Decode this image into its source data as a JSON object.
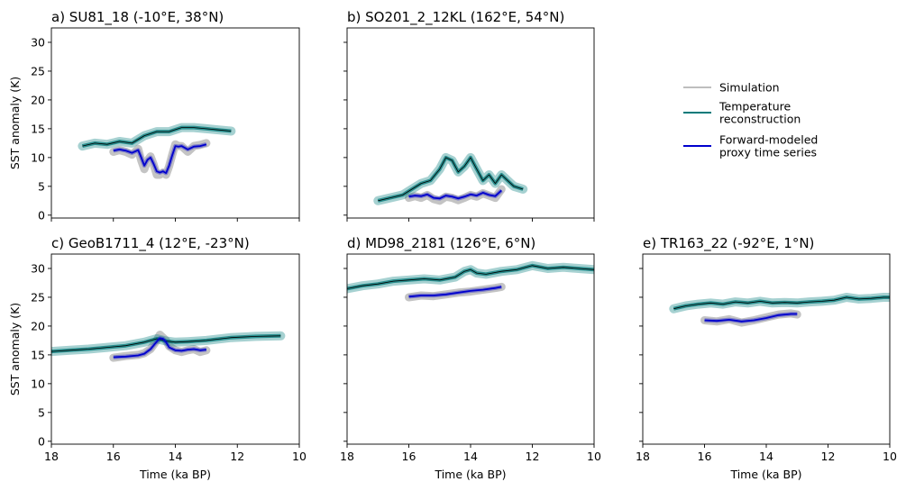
{
  "chart_data": [
    {
      "type": "line",
      "panel": "a",
      "title": "a) SU81_18 (-10°E, 38°N)",
      "xlabel": "",
      "ylabel": "SST anomaly (K)",
      "xlim": [
        18,
        10
      ],
      "ylim": [
        -0.5,
        32.5
      ],
      "xticks": [
        18,
        16,
        14,
        12,
        10
      ],
      "yticks": [
        0,
        5,
        10,
        15,
        20,
        25,
        30
      ],
      "show_xticklabels": false,
      "show_yticklabels": true,
      "series": [
        {
          "role": "simulation",
          "x": [
            16.0,
            15.8,
            15.6,
            15.4,
            15.2,
            15.1,
            15.0,
            14.9,
            14.8,
            14.7,
            14.6,
            14.5,
            14.4,
            14.3,
            14.2,
            14.1,
            14.0,
            13.9,
            13.8,
            13.6,
            13.4,
            13.2,
            13.0
          ],
          "y": [
            11.0,
            11.3,
            11.0,
            10.5,
            11.5,
            9.5,
            8.0,
            9.5,
            10.2,
            8.8,
            7.0,
            7.0,
            7.4,
            7.0,
            8.5,
            10.5,
            12.3,
            12.0,
            12.0,
            11.0,
            12.0,
            12.2,
            12.5
          ]
        },
        {
          "role": "reconstruction",
          "x": [
            17.0,
            16.6,
            16.2,
            15.8,
            15.4,
            15.0,
            14.6,
            14.2,
            13.8,
            13.4,
            13.0,
            12.6,
            12.2
          ],
          "y": [
            12.0,
            12.5,
            12.3,
            12.8,
            12.5,
            13.8,
            14.5,
            14.5,
            15.2,
            15.2,
            15.0,
            14.8,
            14.6
          ]
        },
        {
          "role": "forward-model",
          "x": [
            16.0,
            15.8,
            15.6,
            15.4,
            15.2,
            15.1,
            15.0,
            14.9,
            14.8,
            14.7,
            14.6,
            14.5,
            14.4,
            14.3,
            14.2,
            14.1,
            14.0,
            13.9,
            13.8,
            13.6,
            13.4,
            13.2,
            13.0
          ],
          "y": [
            11.2,
            11.4,
            11.2,
            10.8,
            11.3,
            10.0,
            8.6,
            9.6,
            10.0,
            8.9,
            7.6,
            7.4,
            7.6,
            7.3,
            8.6,
            10.4,
            12.0,
            11.9,
            12.0,
            11.4,
            11.9,
            12.0,
            12.3
          ]
        }
      ]
    },
    {
      "type": "line",
      "panel": "b",
      "title": "b) SO201_2_12KL (162°E, 54°N)",
      "xlabel": "",
      "ylabel": "",
      "xlim": [
        18,
        10
      ],
      "ylim": [
        -0.5,
        32.5
      ],
      "xticks": [
        18,
        16,
        14,
        12,
        10
      ],
      "yticks": [
        0,
        5,
        10,
        15,
        20,
        25,
        30
      ],
      "show_xticklabels": false,
      "show_yticklabels": false,
      "series": [
        {
          "role": "simulation",
          "x": [
            16.0,
            15.8,
            15.6,
            15.4,
            15.2,
            15.0,
            14.8,
            14.6,
            14.4,
            14.2,
            14.0,
            13.8,
            13.6,
            13.4,
            13.2,
            13.0
          ],
          "y": [
            3.0,
            3.3,
            3.0,
            3.5,
            2.8,
            2.5,
            3.2,
            3.0,
            2.6,
            3.0,
            3.5,
            3.2,
            3.8,
            3.4,
            3.0,
            4.5
          ]
        },
        {
          "role": "reconstruction",
          "x": [
            17.0,
            16.6,
            16.2,
            15.9,
            15.6,
            15.3,
            15.0,
            14.8,
            14.6,
            14.4,
            14.2,
            14.0,
            13.8,
            13.6,
            13.4,
            13.2,
            13.0,
            12.8,
            12.6,
            12.3
          ],
          "y": [
            2.5,
            3.0,
            3.5,
            4.5,
            5.5,
            6.0,
            8.0,
            10.0,
            9.5,
            7.5,
            8.5,
            10.0,
            8.0,
            6.0,
            7.0,
            5.5,
            7.0,
            6.0,
            5.0,
            4.5
          ]
        },
        {
          "role": "forward-model",
          "x": [
            16.0,
            15.8,
            15.6,
            15.4,
            15.2,
            15.0,
            14.8,
            14.6,
            14.4,
            14.2,
            14.0,
            13.8,
            13.6,
            13.4,
            13.2,
            13.0
          ],
          "y": [
            3.2,
            3.4,
            3.3,
            3.6,
            3.0,
            2.9,
            3.4,
            3.2,
            2.9,
            3.2,
            3.6,
            3.4,
            3.9,
            3.5,
            3.3,
            4.3
          ]
        }
      ]
    },
    {
      "type": "line",
      "panel": "c",
      "title": "c) GeoB1711_4 (12°E, -23°N)",
      "xlabel": "Time (ka BP)",
      "ylabel": "SST anomaly (K)",
      "xlim": [
        18,
        10
      ],
      "ylim": [
        -0.5,
        32.5
      ],
      "xticks": [
        18,
        16,
        14,
        12,
        10
      ],
      "yticks": [
        0,
        5,
        10,
        15,
        20,
        25,
        30
      ],
      "show_xticklabels": true,
      "show_yticklabels": true,
      "series": [
        {
          "role": "simulation",
          "x": [
            16.0,
            15.6,
            15.2,
            15.0,
            14.8,
            14.6,
            14.5,
            14.4,
            14.3,
            14.2,
            14.0,
            13.8,
            13.6,
            13.4,
            13.2,
            13.0
          ],
          "y": [
            14.5,
            14.8,
            15.0,
            15.3,
            16.0,
            17.5,
            18.5,
            18.0,
            17.5,
            16.5,
            15.8,
            15.5,
            15.8,
            16.0,
            15.5,
            15.8
          ]
        },
        {
          "role": "reconstruction",
          "x": [
            18.0,
            17.4,
            16.8,
            16.2,
            15.6,
            15.0,
            14.6,
            14.3,
            14.0,
            13.6,
            13.0,
            12.2,
            11.4,
            10.6
          ],
          "y": [
            15.6,
            15.8,
            16.0,
            16.3,
            16.6,
            17.2,
            17.8,
            17.4,
            17.2,
            17.3,
            17.5,
            18.0,
            18.2,
            18.3
          ]
        },
        {
          "role": "forward-model",
          "x": [
            16.0,
            15.6,
            15.2,
            15.0,
            14.8,
            14.6,
            14.5,
            14.4,
            14.3,
            14.2,
            14.0,
            13.8,
            13.6,
            13.4,
            13.2,
            13.0
          ],
          "y": [
            14.6,
            14.7,
            14.9,
            15.2,
            16.0,
            17.3,
            17.9,
            17.8,
            17.2,
            16.3,
            15.8,
            15.7,
            15.9,
            16.0,
            15.8,
            15.9
          ]
        }
      ]
    },
    {
      "type": "line",
      "panel": "d",
      "title": "d) MD98_2181 (126°E, 6°N)",
      "xlabel": "Time (ka BP)",
      "ylabel": "",
      "xlim": [
        18,
        10
      ],
      "ylim": [
        -0.5,
        32.5
      ],
      "xticks": [
        18,
        16,
        14,
        12,
        10
      ],
      "yticks": [
        0,
        5,
        10,
        15,
        20,
        25,
        30
      ],
      "show_xticklabels": true,
      "show_yticklabels": false,
      "series": [
        {
          "role": "simulation",
          "x": [
            16.0,
            15.6,
            15.2,
            14.8,
            14.4,
            14.0,
            13.6,
            13.2,
            13.0
          ],
          "y": [
            25.0,
            25.3,
            25.2,
            25.5,
            25.8,
            26.0,
            26.3,
            26.6,
            26.8
          ]
        },
        {
          "role": "reconstruction",
          "x": [
            18.0,
            17.5,
            17.0,
            16.5,
            16.0,
            15.5,
            15.0,
            14.5,
            14.2,
            14.0,
            13.8,
            13.5,
            13.0,
            12.5,
            12.0,
            11.5,
            11.0,
            10.5,
            10.0
          ],
          "y": [
            26.5,
            27.0,
            27.3,
            27.8,
            28.0,
            28.2,
            28.0,
            28.5,
            29.5,
            29.8,
            29.2,
            29.0,
            29.5,
            29.8,
            30.5,
            30.0,
            30.2,
            30.0,
            29.8
          ]
        },
        {
          "role": "forward-model",
          "x": [
            16.0,
            15.6,
            15.2,
            14.8,
            14.4,
            14.0,
            13.6,
            13.2,
            13.0
          ],
          "y": [
            25.1,
            25.3,
            25.3,
            25.5,
            25.8,
            26.1,
            26.3,
            26.6,
            26.8
          ]
        }
      ]
    },
    {
      "type": "line",
      "panel": "e",
      "title": "e) TR163_22 (-92°E, 1°N)",
      "xlabel": "Time (ka BP)",
      "ylabel": "",
      "xlim": [
        18,
        10
      ],
      "ylim": [
        -0.5,
        32.5
      ],
      "xticks": [
        18,
        16,
        14,
        12,
        10
      ],
      "yticks": [
        0,
        5,
        10,
        15,
        20,
        25,
        30
      ],
      "show_xticklabels": true,
      "show_yticklabels": false,
      "series": [
        {
          "role": "simulation",
          "x": [
            16.0,
            15.6,
            15.2,
            14.8,
            14.4,
            14.0,
            13.6,
            13.2,
            13.0
          ],
          "y": [
            21.0,
            20.8,
            21.2,
            20.6,
            21.0,
            21.5,
            22.0,
            22.2,
            22.0
          ]
        },
        {
          "role": "reconstruction",
          "x": [
            17.0,
            16.6,
            16.2,
            15.8,
            15.4,
            15.0,
            14.6,
            14.2,
            13.8,
            13.4,
            13.0,
            12.6,
            12.2,
            11.8,
            11.4,
            11.0,
            10.6,
            10.2,
            10.0
          ],
          "y": [
            23.0,
            23.5,
            23.8,
            24.0,
            23.8,
            24.2,
            24.0,
            24.3,
            24.0,
            24.1,
            24.0,
            24.2,
            24.3,
            24.5,
            25.0,
            24.7,
            24.8,
            25.0,
            25.0
          ]
        },
        {
          "role": "forward-model",
          "x": [
            16.0,
            15.6,
            15.2,
            14.8,
            14.4,
            14.0,
            13.6,
            13.2,
            13.0
          ],
          "y": [
            21.0,
            20.9,
            21.1,
            20.8,
            21.0,
            21.4,
            21.9,
            22.1,
            22.1
          ]
        }
      ]
    }
  ],
  "legend": {
    "placement": "upper-right (empty panel area)",
    "items": [
      {
        "label_lines": [
          "Simulation"
        ],
        "color": "#bebebe"
      },
      {
        "label_lines": [
          "Temperature",
          "reconstruction"
        ],
        "color": "#007a7a"
      },
      {
        "label_lines": [
          "Forward-modeled",
          "proxy time series"
        ],
        "color": "#0000cd"
      }
    ]
  },
  "colors": {
    "simulation": "#bebebe",
    "reconstruction": "#007a7a",
    "reconstruction_line": "#000000",
    "forward_model": "#0000cd",
    "axis": "#000000"
  }
}
